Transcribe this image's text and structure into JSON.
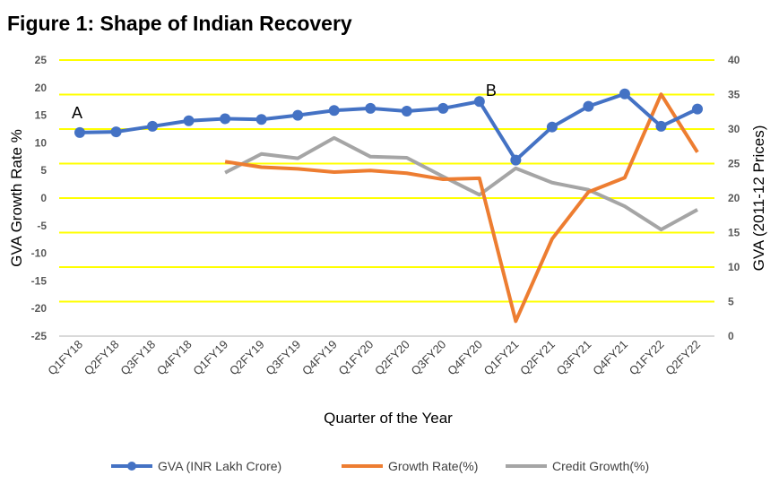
{
  "chart_data": {
    "type": "line",
    "title": "Figure 1: Shape of Indian Recovery",
    "xlabel": "Quarter of the Year",
    "ylabel_left": "GVA Growth Rate %",
    "ylabel_right": "GVA (2011-12 Prices)",
    "ylim_left": [
      -25,
      25
    ],
    "ylim_right": [
      0,
      40
    ],
    "yticks_left": [
      25,
      20,
      15,
      10,
      5,
      0,
      -5,
      -10,
      -15,
      -20,
      -25
    ],
    "yticks_right": [
      40,
      35,
      30,
      25,
      20,
      15,
      10,
      5,
      0
    ],
    "grid": true,
    "grid_color": "#FFFF00",
    "legend_position": "bottom",
    "categories": [
      "Q1FY18",
      "Q2FY18",
      "Q3FY18",
      "Q4FY18",
      "Q1FY19",
      "Q2FY19",
      "Q3FY19",
      "Q4FY19",
      "Q1FY20",
      "Q2FY20",
      "Q3FY20",
      "Q4FY20",
      "Q1FY21",
      "Q2FY21",
      "Q3FY21",
      "Q4FY21",
      "Q1FY22",
      "Q2FY22"
    ],
    "series": [
      {
        "name": "GVA (INR Lakh Crore)",
        "axis": "right",
        "color": "#4472C4",
        "markers": true,
        "values": [
          29.5,
          29.6,
          30.4,
          31.2,
          31.5,
          31.4,
          32.0,
          32.7,
          33.0,
          32.6,
          33.0,
          34.0,
          25.5,
          30.3,
          33.3,
          35.1,
          30.4,
          32.9
        ]
      },
      {
        "name": "Growth Rate(%)",
        "axis": "left",
        "color": "#ED7D31",
        "markers": false,
        "values": [
          null,
          null,
          null,
          null,
          6.6,
          5.6,
          5.3,
          4.7,
          5.0,
          4.5,
          3.4,
          3.6,
          -22.3,
          -7.4,
          1.1,
          3.7,
          18.8,
          8.3
        ]
      },
      {
        "name": "Credit Growth(%)",
        "axis": "left",
        "color": "#A5A5A5",
        "markers": false,
        "values": [
          null,
          null,
          null,
          null,
          4.6,
          8.0,
          7.2,
          10.9,
          7.5,
          7.3,
          3.9,
          0.6,
          5.4,
          2.8,
          1.5,
          -1.5,
          -5.7,
          -2.1
        ]
      }
    ],
    "annotations": [
      {
        "text": "A",
        "category": "Q1FY18"
      },
      {
        "text": "B",
        "category": "Q4FY20"
      }
    ]
  }
}
